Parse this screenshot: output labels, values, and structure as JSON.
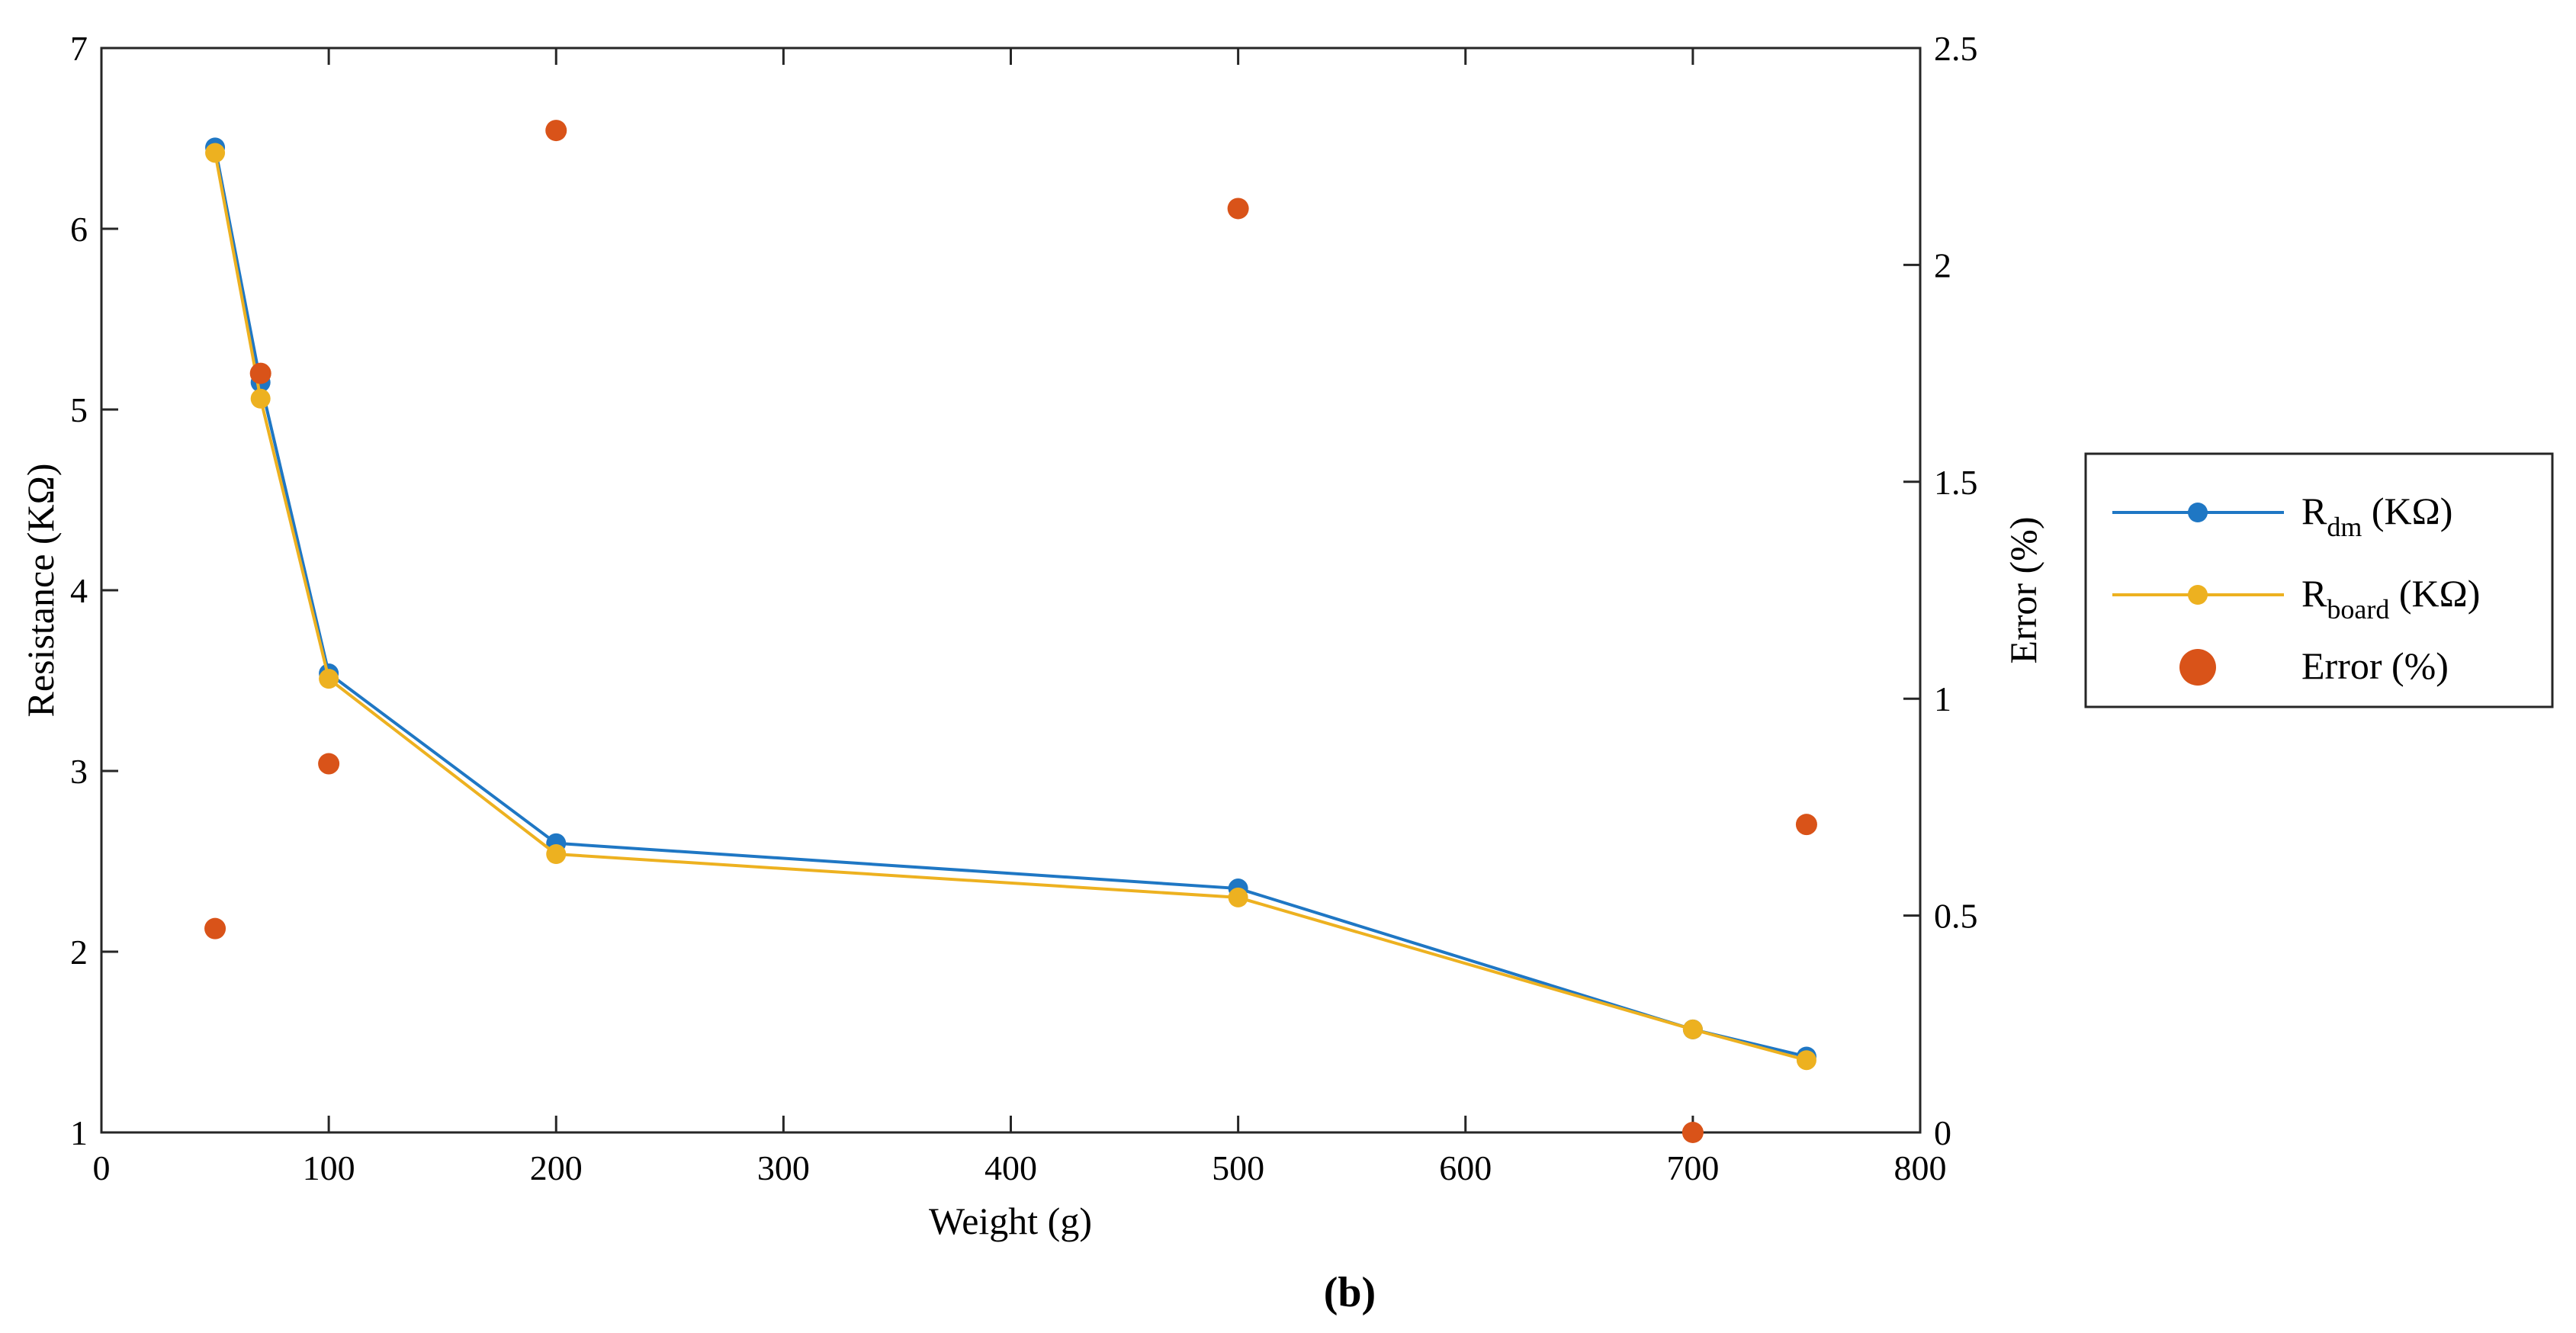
{
  "panel_label": "(b)",
  "chart_data": {
    "type": "line",
    "xlabel": "Weight (g)",
    "ylabel": "Resistance (KΩ)",
    "y2label": "Error (%)",
    "xlim": [
      0,
      800
    ],
    "ylim": [
      1,
      7
    ],
    "y2lim": [
      0,
      2.5
    ],
    "x_ticks": [
      0,
      100,
      200,
      300,
      400,
      500,
      600,
      700,
      800
    ],
    "y_ticks": [
      1,
      2,
      3,
      4,
      5,
      6,
      7
    ],
    "y2_ticks": [
      0,
      0.5,
      1,
      1.5,
      2,
      2.5
    ],
    "x_tick_labels": [
      "0",
      "100",
      "200",
      "300",
      "400",
      "500",
      "600",
      "700",
      "800"
    ],
    "y_tick_labels": [
      "1",
      "2",
      "3",
      "4",
      "5",
      "6",
      "7"
    ],
    "y2_tick_labels": [
      "0",
      "0.5",
      "1",
      "1.5",
      "2",
      "2.5"
    ],
    "x": [
      50,
      70,
      100,
      200,
      500,
      700,
      750
    ],
    "series": [
      {
        "name": "R_dm (KΩ)",
        "legend_main": "R",
        "legend_sub": "dm",
        "legend_tail": " (KΩ)",
        "axis": "left",
        "style": "line-marker",
        "color": "#1f77c4",
        "values": [
          6.45,
          5.15,
          3.54,
          2.6,
          2.35,
          1.57,
          1.42
        ]
      },
      {
        "name": "R_board (KΩ)",
        "legend_main": "R",
        "legend_sub": "board",
        "legend_tail": " (KΩ)",
        "axis": "left",
        "style": "line-marker",
        "color": "#edb120",
        "values": [
          6.42,
          5.06,
          3.51,
          2.54,
          2.3,
          1.57,
          1.4
        ]
      },
      {
        "name": "Error (%)",
        "legend_main": "Error (%)",
        "legend_sub": "",
        "legend_tail": "",
        "axis": "right",
        "style": "scatter",
        "color": "#d95319",
        "values": [
          0.47,
          1.75,
          0.85,
          2.31,
          2.13,
          0.0,
          0.71
        ]
      }
    ],
    "legend_position": "right"
  }
}
